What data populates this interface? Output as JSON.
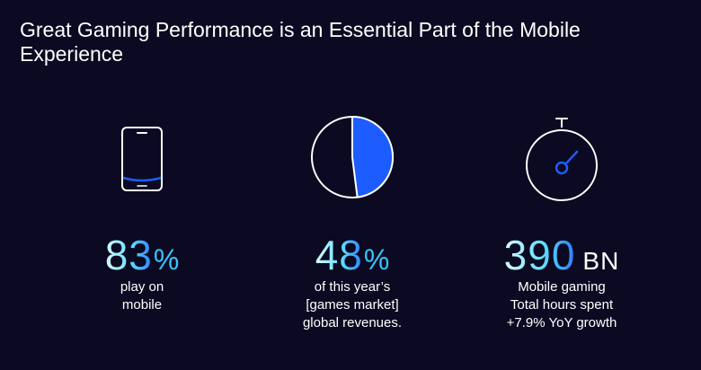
{
  "title": "Great Gaming Performance is an Essential Part of the Mobile Experience",
  "colors": {
    "background": "#0b0a22",
    "accent_blue": "#1d5cff",
    "accent_cyan": "#34c6ff"
  },
  "stats": [
    {
      "icon": "smartphone-icon",
      "number": "83",
      "unit": "%",
      "lines": [
        "play on",
        "mobile"
      ]
    },
    {
      "icon": "pie-chart-icon",
      "number": "48",
      "unit": "%",
      "share": 0.48,
      "lines": [
        "of this year’s",
        "[games market]",
        "global revenues."
      ]
    },
    {
      "icon": "stopwatch-icon",
      "number": "390",
      "unit": "BN",
      "lines": [
        "Mobile gaming",
        "Total hours spent",
        "+7.9% YoY growth"
      ]
    }
  ]
}
